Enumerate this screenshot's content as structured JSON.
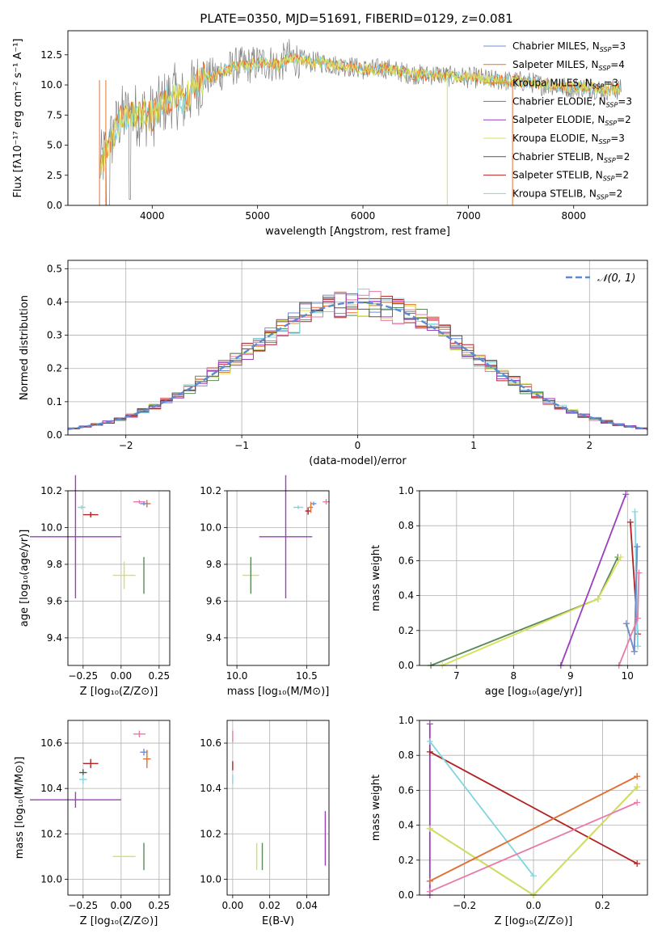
{
  "figure_title": "PLATE=0350, MJD=51691, FIBERID=0129, z=0.081",
  "colors": {
    "Chabrier MILES": "#6b8fd6",
    "Salpeter MILES": "#e8712b",
    "Kroupa MILES": "#c49a3a",
    "Chabrier ELODIE": "#5a8a5a",
    "Salpeter ELODIE": "#9b3fbf",
    "Kroupa ELODIE": "#d8e05a",
    "Chabrier STELIB": "#555555",
    "Salpeter STELIB": "#b22222",
    "Kroupa STELIB": "#7fd6e0",
    "data": "#808080",
    "pink": "#e87aa8",
    "lightgreen": "#b5dd55",
    "green": "#6aa832",
    "normal": "#5b8bd0"
  },
  "chart_data": [
    {
      "id": "spectrum",
      "type": "line",
      "title": "PLATE=0350, MJD=51691, FIBERID=0129, z=0.081",
      "xlabel": "wavelength [Angstrom, rest frame]",
      "ylabel": "Flux [fλ10⁻¹⁷ erg cm⁻² s⁻¹ A⁻¹]",
      "xlim": [
        3200,
        8700
      ],
      "ylim": [
        0,
        14.5
      ],
      "xticks": [
        4000,
        5000,
        6000,
        7000,
        8000
      ],
      "yticks": [
        0.0,
        2.5,
        5.0,
        7.5,
        10.0,
        12.5
      ],
      "legend_position": "right",
      "legend": [
        {
          "label": "Chabrier MILES, N",
          "sub": "SSP",
          "suffix": "=3"
        },
        {
          "label": "Salpeter MILES, N",
          "sub": "SSP",
          "suffix": "=4"
        },
        {
          "label": "Kroupa MILES, N",
          "sub": "SSP",
          "suffix": "=3"
        },
        {
          "label": "Chabrier ELODIE, N",
          "sub": "SSP",
          "suffix": "=3"
        },
        {
          "label": "Salpeter ELODIE, N",
          "sub": "SSP",
          "suffix": "=2"
        },
        {
          "label": "Kroupa ELODIE, N",
          "sub": "SSP",
          "suffix": "=3"
        },
        {
          "label": "Chabrier STELIB, N",
          "sub": "SSP",
          "suffix": "=2"
        },
        {
          "label": "Salpeter STELIB, N",
          "sub": "SSP",
          "suffix": "=2"
        },
        {
          "label": "Kroupa STELIB, N",
          "sub": "SSP",
          "suffix": "=2"
        }
      ],
      "continuum": [
        [
          3500,
          3.2
        ],
        [
          3600,
          5.2
        ],
        [
          3700,
          7.3
        ],
        [
          3800,
          7.5
        ],
        [
          3900,
          7.6
        ],
        [
          4000,
          7.4
        ],
        [
          4100,
          8.4
        ],
        [
          4200,
          9.2
        ],
        [
          4300,
          8.6
        ],
        [
          4400,
          9.8
        ],
        [
          4500,
          10.6
        ],
        [
          4600,
          10.8
        ],
        [
          4700,
          11.2
        ],
        [
          4800,
          11.6
        ],
        [
          4900,
          11.6
        ],
        [
          5000,
          11.8
        ],
        [
          5100,
          11.9
        ],
        [
          5200,
          11.6
        ],
        [
          5300,
          12.3
        ],
        [
          5400,
          12.1
        ],
        [
          5500,
          11.9
        ],
        [
          5600,
          11.9
        ],
        [
          5700,
          11.7
        ],
        [
          5800,
          11.6
        ],
        [
          5900,
          11.5
        ],
        [
          6000,
          11.3
        ],
        [
          6100,
          11.3
        ],
        [
          6200,
          11.4
        ],
        [
          6300,
          11.2
        ],
        [
          6400,
          11.0
        ],
        [
          6500,
          10.9
        ],
        [
          6600,
          10.8
        ],
        [
          6700,
          10.9
        ],
        [
          6800,
          10.7
        ],
        [
          6900,
          10.7
        ],
        [
          7000,
          10.6
        ],
        [
          7100,
          10.6
        ],
        [
          7200,
          10.4
        ],
        [
          7300,
          10.4
        ],
        [
          7400,
          10.3
        ],
        [
          7500,
          10.3
        ],
        [
          7600,
          10.2
        ],
        [
          7700,
          10.0
        ],
        [
          7800,
          10.0
        ],
        [
          7900,
          9.8
        ],
        [
          8000,
          9.8
        ],
        [
          8100,
          9.8
        ],
        [
          8200,
          9.7
        ],
        [
          8300,
          9.6
        ],
        [
          8400,
          9.6
        ],
        [
          8450,
          9.6
        ]
      ]
    },
    {
      "id": "residual_hist",
      "type": "line",
      "xlabel": "(data-model)/error",
      "ylabel": "Normed distribution",
      "xlim": [
        -2.5,
        2.5
      ],
      "ylim": [
        0,
        0.525
      ],
      "xticks": [
        -2,
        -1,
        0,
        1,
        2
      ],
      "yticks": [
        0.0,
        0.1,
        0.2,
        0.3,
        0.4,
        0.5
      ],
      "legend_position": "upper right",
      "legend": [
        "𝒩(0, 1)"
      ],
      "bin_width": 0.1
    },
    {
      "id": "age_vs_Z",
      "type": "scatter",
      "xlabel": "Z [log₁₀(Z/Z⊙)]",
      "ylabel": "age  [log₁₀(age/yr)]",
      "xlim": [
        -0.35,
        0.32
      ],
      "ylim": [
        9.25,
        10.2
      ],
      "xticks": [
        -0.25,
        0.0,
        0.25
      ],
      "yticks": [
        9.4,
        9.6,
        9.8,
        10.0,
        10.2
      ],
      "points": [
        {
          "model": "Salpeter ELODIE",
          "x": -0.3,
          "xerr": 0.6,
          "y": 9.95,
          "yerr": 0.67
        },
        {
          "model": "Kroupa STELIB",
          "x": -0.26,
          "xerr": 0.05,
          "y": 10.11,
          "yerr": 0.02
        },
        {
          "model": "Salpeter STELIB",
          "x": -0.2,
          "xerr": 0.1,
          "y": 10.07,
          "yerr": 0.03
        },
        {
          "model": "Kroupa ELODIE",
          "x": 0.02,
          "xerr": 0.15,
          "y": 9.74,
          "yerr": 0.15
        },
        {
          "model": "Chabrier ELODIE",
          "x": 0.15,
          "xerr": 0.0,
          "y": 9.74,
          "yerr": 0.2
        },
        {
          "model": "Salpeter MILES",
          "x": 0.17,
          "xerr": 0.05,
          "y": 10.13,
          "yerr": 0.04
        },
        {
          "model": "Chabrier MILES",
          "x": 0.15,
          "xerr": 0.05,
          "y": 10.13,
          "yerr": 0.02
        },
        {
          "model": "pink",
          "x": 0.12,
          "xerr": 0.08,
          "y": 10.14,
          "yerr": 0.02
        }
      ]
    },
    {
      "id": "age_vs_mass",
      "type": "scatter",
      "xlabel": "mass [log₁₀(M/M⊙)]",
      "xlim": [
        9.93,
        10.66
      ],
      "ylim": [
        9.25,
        10.2
      ],
      "xticks": [
        10.0,
        10.5
      ],
      "yticks": [
        9.4,
        9.6,
        9.8,
        10.0,
        10.2
      ],
      "points": [
        {
          "model": "Salpeter ELODIE",
          "x": 10.35,
          "xerr": 0.38,
          "y": 9.95,
          "yerr": 0.67
        },
        {
          "model": "Kroupa ELODIE",
          "x": 10.1,
          "xerr": 0.12,
          "y": 9.74,
          "yerr": 0.15
        },
        {
          "model": "Chabrier ELODIE",
          "x": 10.1,
          "xerr": 0.0,
          "y": 9.74,
          "yerr": 0.2
        },
        {
          "model": "Kroupa STELIB",
          "x": 10.44,
          "xerr": 0.07,
          "y": 10.11,
          "yerr": 0.02
        },
        {
          "model": "Salpeter STELIB",
          "x": 10.51,
          "xerr": 0.04,
          "y": 10.09,
          "yerr": 0.04
        },
        {
          "model": "Chabrier MILES",
          "x": 10.55,
          "xerr": 0.04,
          "y": 10.13,
          "yerr": 0.02
        },
        {
          "model": "Salpeter MILES",
          "x": 10.53,
          "xerr": 0.03,
          "y": 10.11,
          "yerr": 0.06
        },
        {
          "model": "pink",
          "x": 10.64,
          "xerr": 0.05,
          "y": 10.14,
          "yerr": 0.03
        }
      ]
    },
    {
      "id": "weight_vs_age",
      "type": "line",
      "xlabel": "age  [log₁₀(age/yr)]",
      "ylabel": "mass weight",
      "xlim": [
        6.35,
        10.35
      ],
      "ylim": [
        0,
        1.0
      ],
      "xticks": [
        7,
        8,
        9,
        10
      ],
      "yticks": [
        0.0,
        0.2,
        0.4,
        0.6,
        0.8,
        1.0
      ],
      "series": [
        {
          "model": "Chabrier ELODIE",
          "x": [
            6.55,
            9.48,
            9.83
          ],
          "y": [
            0.0,
            0.38,
            0.62
          ]
        },
        {
          "model": "Kroupa ELODIE",
          "x": [
            6.75,
            9.48,
            9.88
          ],
          "y": [
            0.0,
            0.38,
            0.62
          ]
        },
        {
          "model": "Salpeter ELODIE",
          "x": [
            8.83,
            9.97
          ],
          "y": [
            0.0,
            0.98
          ]
        },
        {
          "model": "Salpeter STELIB",
          "x": [
            10.05,
            10.18
          ],
          "y": [
            0.82,
            0.18
          ]
        },
        {
          "model": "Kroupa STELIB",
          "x": [
            10.13,
            10.18
          ],
          "y": [
            0.88,
            0.11
          ]
        },
        {
          "model": "Salpeter MILES",
          "x": [
            9.98,
            10.12,
            10.17
          ],
          "y": [
            0.24,
            0.08,
            0.68
          ]
        },
        {
          "model": "Chabrier MILES",
          "x": [
            9.98,
            10.12,
            10.17
          ],
          "y": [
            0.24,
            0.08,
            0.68
          ]
        },
        {
          "model": "pink",
          "x": [
            9.85,
            10.18,
            10.2
          ],
          "y": [
            0.0,
            0.27,
            0.53
          ]
        }
      ]
    },
    {
      "id": "mass_vs_Z",
      "type": "scatter",
      "xlabel": "Z [log₁₀(Z/Z⊙)]",
      "ylabel": "mass [log₁₀(M/M⊙)]",
      "xlim": [
        -0.35,
        0.32
      ],
      "ylim": [
        9.93,
        10.7
      ],
      "xticks": [
        -0.25,
        0.0,
        0.25
      ],
      "yticks": [
        10.0,
        10.2,
        10.4,
        10.6
      ],
      "points": [
        {
          "model": "Salpeter ELODIE",
          "x": -0.3,
          "xerr": 0.6,
          "y": 10.35,
          "yerr": 0.07
        },
        {
          "model": "Salpeter STELIB",
          "x": -0.2,
          "xerr": 0.1,
          "y": 10.51,
          "yerr": 0.04
        },
        {
          "model": "Chabrier STELIB",
          "x": -0.25,
          "xerr": 0.05,
          "y": 10.47,
          "yerr": 0.03
        },
        {
          "model": "Kroupa STELIB",
          "x": -0.25,
          "xerr": 0.05,
          "y": 10.44,
          "yerr": 0.04
        },
        {
          "model": "Chabrier ELODIE",
          "x": 0.15,
          "xerr": 0.0,
          "y": 10.1,
          "yerr": 0.12
        },
        {
          "model": "Kroupa ELODIE",
          "x": 0.02,
          "xerr": 0.15,
          "y": 10.1,
          "yerr": 0.0
        },
        {
          "model": "pink",
          "x": 0.12,
          "xerr": 0.08,
          "y": 10.64,
          "yerr": 0.03
        },
        {
          "model": "Chabrier MILES",
          "x": 0.15,
          "xerr": 0.05,
          "y": 10.56,
          "yerr": 0.03
        },
        {
          "model": "Salpeter MILES",
          "x": 0.17,
          "xerr": 0.05,
          "y": 10.53,
          "yerr": 0.08
        }
      ]
    },
    {
      "id": "mass_vs_ebv",
      "type": "scatter",
      "xlabel": "E(B-V)",
      "xlim": [
        -0.003,
        0.052
      ],
      "ylim": [
        9.93,
        10.7
      ],
      "xticks": [
        0.0,
        0.02,
        0.04
      ],
      "yticks": [
        10.0,
        10.2,
        10.4,
        10.6
      ],
      "points": [
        {
          "model": "Salpeter ELODIE",
          "x": 0.05,
          "xerr": 0.0,
          "y": 10.18,
          "yerr": 0.24
        },
        {
          "model": "Kroupa ELODIE",
          "x": 0.013,
          "xerr": 0.0,
          "y": 10.1,
          "yerr": 0.12
        },
        {
          "model": "Chabrier ELODIE",
          "x": 0.016,
          "xerr": 0.0,
          "y": 10.1,
          "yerr": 0.12
        },
        {
          "model": "Salpeter STELIB",
          "x": 0.0,
          "xerr": 0.0,
          "y": 10.5,
          "yerr": 0.04
        },
        {
          "model": "Kroupa STELIB",
          "x": 0.0,
          "xerr": 0.0,
          "y": 10.44,
          "yerr": 0.04
        },
        {
          "model": "pink",
          "x": 0.0,
          "xerr": 0.0,
          "y": 10.63,
          "yerr": 0.05
        }
      ]
    },
    {
      "id": "weight_vs_Z",
      "type": "line",
      "xlabel": "Z [log₁₀(Z/Z⊙)]",
      "ylabel": "mass weight",
      "xlim": [
        -0.33,
        0.33
      ],
      "ylim": [
        0,
        1.0
      ],
      "xticks": [
        -0.2,
        0.0,
        0.2
      ],
      "yticks": [
        0.0,
        0.2,
        0.4,
        0.6,
        0.8,
        1.0
      ],
      "series": [
        {
          "model": "Salpeter ELODIE",
          "x": [
            -0.3,
            -0.3
          ],
          "y": [
            0.0,
            0.98
          ]
        },
        {
          "model": "Salpeter STELIB",
          "x": [
            -0.3,
            0.3
          ],
          "y": [
            0.82,
            0.18
          ]
        },
        {
          "model": "Kroupa STELIB",
          "x": [
            -0.3,
            0.0
          ],
          "y": [
            0.88,
            0.11
          ]
        },
        {
          "model": "Chabrier ELODIE",
          "x": [
            -0.3,
            0.0,
            0.3
          ],
          "y": [
            0.38,
            0.0,
            0.62
          ]
        },
        {
          "model": "Kroupa ELODIE",
          "x": [
            -0.3,
            0.0,
            0.3
          ],
          "y": [
            0.38,
            0.0,
            0.62
          ]
        },
        {
          "model": "Chabrier MILES",
          "x": [
            -0.3,
            0.3
          ],
          "y": [
            0.08,
            0.68
          ]
        },
        {
          "model": "Salpeter MILES",
          "x": [
            -0.3,
            0.3
          ],
          "y": [
            0.08,
            0.68
          ]
        },
        {
          "model": "pink",
          "x": [
            -0.3,
            0.3
          ],
          "y": [
            0.02,
            0.53
          ]
        }
      ]
    }
  ]
}
